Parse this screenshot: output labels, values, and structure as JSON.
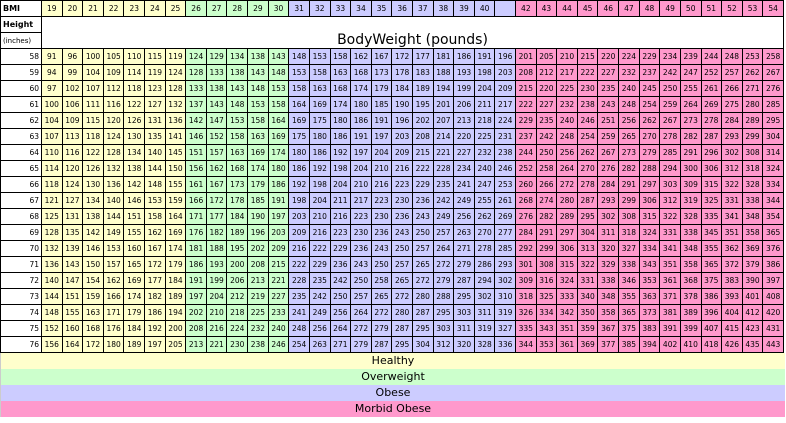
{
  "header": {
    "bmi_label": "BMI",
    "height_label": "Height",
    "inches_label": "(inches)",
    "title": "BodyWeight (pounds)"
  },
  "bmi": [
    19,
    20,
    21,
    22,
    23,
    24,
    25,
    26,
    27,
    28,
    29,
    30,
    31,
    32,
    33,
    34,
    35,
    36,
    37,
    38,
    39,
    40,
    null,
    42,
    43,
    44,
    45,
    46,
    47,
    48,
    49,
    50,
    51,
    52,
    53,
    54
  ],
  "column_colors": [
    "#ffffcc",
    "#ffffcc",
    "#ffffcc",
    "#ffffcc",
    "#ffffcc",
    "#ffffcc",
    "#ffffcc",
    "#ccffcc",
    "#ccffcc",
    "#ccffcc",
    "#ccffcc",
    "#ccffcc",
    "#ccccff",
    "#ccccff",
    "#ccccff",
    "#ccccff",
    "#ccccff",
    "#ccccff",
    "#ccccff",
    "#ccccff",
    "#ccccff",
    "#ccccff",
    "#ccccff",
    "#ff99cc",
    "#ff99cc",
    "#ff99cc",
    "#ff99cc",
    "#ff99cc",
    "#ff99cc",
    "#ff99cc",
    "#ff99cc",
    "#ff99cc",
    "#ff99cc",
    "#ff99cc",
    "#ff99cc",
    "#ff99cc"
  ],
  "rows": [
    {
      "height": 58,
      "weights": [
        91,
        96,
        100,
        105,
        110,
        115,
        119,
        124,
        129,
        134,
        138,
        143,
        148,
        153,
        158,
        162,
        167,
        172,
        177,
        181,
        186,
        191,
        196,
        201,
        205,
        210,
        215,
        220,
        224,
        229,
        234,
        239,
        244,
        248,
        253,
        258
      ]
    },
    {
      "height": 59,
      "weights": [
        94,
        99,
        104,
        109,
        114,
        119,
        124,
        128,
        133,
        138,
        143,
        148,
        153,
        158,
        163,
        168,
        173,
        178,
        183,
        188,
        193,
        198,
        203,
        208,
        212,
        217,
        222,
        227,
        232,
        237,
        242,
        247,
        252,
        257,
        262,
        267
      ]
    },
    {
      "height": 60,
      "weights": [
        97,
        102,
        107,
        112,
        118,
        123,
        128,
        133,
        138,
        143,
        148,
        153,
        158,
        163,
        168,
        174,
        179,
        184,
        189,
        194,
        199,
        204,
        209,
        215,
        220,
        225,
        230,
        235,
        240,
        245,
        250,
        255,
        261,
        266,
        271,
        276
      ]
    },
    {
      "height": 61,
      "weights": [
        100,
        106,
        111,
        116,
        122,
        127,
        132,
        137,
        143,
        148,
        153,
        158,
        164,
        169,
        174,
        180,
        185,
        190,
        195,
        201,
        206,
        211,
        217,
        222,
        227,
        232,
        238,
        243,
        248,
        254,
        259,
        264,
        269,
        275,
        280,
        285
      ]
    },
    {
      "height": 62,
      "weights": [
        104,
        109,
        115,
        120,
        126,
        131,
        136,
        142,
        147,
        153,
        158,
        164,
        169,
        175,
        180,
        186,
        191,
        196,
        202,
        207,
        213,
        218,
        224,
        229,
        235,
        240,
        246,
        251,
        256,
        262,
        267,
        273,
        278,
        284,
        289,
        295
      ]
    },
    {
      "height": 63,
      "weights": [
        107,
        113,
        118,
        124,
        130,
        135,
        141,
        146,
        152,
        158,
        163,
        169,
        175,
        180,
        186,
        191,
        197,
        203,
        208,
        214,
        220,
        225,
        231,
        237,
        242,
        248,
        254,
        259,
        265,
        270,
        278,
        282,
        287,
        293,
        299,
        304
      ]
    },
    {
      "height": 64,
      "weights": [
        110,
        116,
        122,
        128,
        134,
        140,
        145,
        151,
        157,
        163,
        169,
        174,
        180,
        186,
        192,
        197,
        204,
        209,
        215,
        221,
        227,
        232,
        238,
        244,
        250,
        256,
        262,
        267,
        273,
        279,
        285,
        291,
        296,
        302,
        308,
        314
      ]
    },
    {
      "height": 65,
      "weights": [
        114,
        120,
        126,
        132,
        138,
        144,
        150,
        156,
        162,
        168,
        174,
        180,
        186,
        192,
        198,
        204,
        210,
        216,
        222,
        228,
        234,
        240,
        246,
        252,
        258,
        264,
        270,
        276,
        282,
        288,
        294,
        300,
        306,
        312,
        318,
        324
      ]
    },
    {
      "height": 66,
      "weights": [
        118,
        124,
        130,
        136,
        142,
        148,
        155,
        161,
        167,
        173,
        179,
        186,
        192,
        198,
        204,
        210,
        216,
        223,
        229,
        235,
        241,
        247,
        253,
        260,
        266,
        272,
        278,
        284,
        291,
        297,
        303,
        309,
        315,
        322,
        328,
        334
      ]
    },
    {
      "height": 67,
      "weights": [
        121,
        127,
        134,
        140,
        146,
        153,
        159,
        166,
        172,
        178,
        185,
        191,
        198,
        204,
        211,
        217,
        223,
        230,
        236,
        242,
        249,
        255,
        261,
        268,
        274,
        280,
        287,
        293,
        299,
        306,
        312,
        319,
        325,
        331,
        338,
        344
      ]
    },
    {
      "height": 68,
      "weights": [
        125,
        131,
        138,
        144,
        151,
        158,
        164,
        171,
        177,
        184,
        190,
        197,
        203,
        210,
        216,
        223,
        230,
        236,
        243,
        249,
        256,
        262,
        269,
        276,
        282,
        289,
        295,
        302,
        308,
        315,
        322,
        328,
        335,
        341,
        348,
        354
      ]
    },
    {
      "height": 69,
      "weights": [
        128,
        135,
        142,
        149,
        155,
        162,
        169,
        176,
        182,
        189,
        196,
        203,
        209,
        216,
        223,
        230,
        236,
        243,
        250,
        257,
        263,
        270,
        277,
        284,
        291,
        297,
        304,
        311,
        318,
        324,
        331,
        338,
        345,
        351,
        358,
        365
      ]
    },
    {
      "height": 70,
      "weights": [
        132,
        139,
        146,
        153,
        160,
        167,
        174,
        181,
        188,
        195,
        202,
        209,
        216,
        222,
        229,
        236,
        243,
        250,
        257,
        264,
        271,
        278,
        285,
        292,
        299,
        306,
        313,
        320,
        327,
        334,
        341,
        348,
        355,
        362,
        369,
        376
      ]
    },
    {
      "height": 71,
      "weights": [
        136,
        143,
        150,
        157,
        165,
        172,
        179,
        186,
        193,
        200,
        208,
        215,
        222,
        229,
        236,
        243,
        250,
        257,
        265,
        272,
        279,
        286,
        293,
        301,
        308,
        315,
        322,
        329,
        338,
        343,
        351,
        358,
        365,
        372,
        379,
        386
      ]
    },
    {
      "height": 72,
      "weights": [
        140,
        147,
        154,
        162,
        169,
        177,
        184,
        191,
        199,
        206,
        213,
        221,
        228,
        235,
        242,
        250,
        258,
        265,
        272,
        279,
        287,
        294,
        302,
        309,
        316,
        324,
        331,
        338,
        346,
        353,
        361,
        368,
        375,
        383,
        390,
        397
      ]
    },
    {
      "height": 73,
      "weights": [
        144,
        151,
        159,
        166,
        174,
        182,
        189,
        197,
        204,
        212,
        219,
        227,
        235,
        242,
        250,
        257,
        265,
        272,
        280,
        288,
        295,
        302,
        310,
        318,
        325,
        333,
        340,
        348,
        355,
        363,
        371,
        378,
        386,
        393,
        401,
        408
      ]
    },
    {
      "height": 74,
      "weights": [
        148,
        155,
        163,
        171,
        179,
        186,
        194,
        202,
        210,
        218,
        225,
        233,
        241,
        249,
        256,
        264,
        272,
        280,
        287,
        295,
        303,
        311,
        319,
        326,
        334,
        342,
        350,
        358,
        365,
        373,
        381,
        389,
        396,
        404,
        412,
        420
      ]
    },
    {
      "height": 75,
      "weights": [
        152,
        160,
        168,
        176,
        184,
        192,
        200,
        208,
        216,
        224,
        232,
        240,
        248,
        256,
        264,
        272,
        279,
        287,
        295,
        303,
        311,
        319,
        327,
        335,
        343,
        351,
        359,
        367,
        375,
        383,
        391,
        399,
        407,
        415,
        423,
        431
      ]
    },
    {
      "height": 76,
      "weights": [
        156,
        164,
        172,
        180,
        189,
        197,
        205,
        213,
        221,
        230,
        238,
        246,
        254,
        263,
        271,
        279,
        287,
        295,
        304,
        312,
        320,
        328,
        336,
        344,
        353,
        361,
        369,
        377,
        385,
        394,
        402,
        410,
        418,
        426,
        435,
        443
      ]
    }
  ],
  "legend": [
    {
      "label": "Healthy",
      "color": "#ffffcc"
    },
    {
      "label": "Overweight",
      "color": "#ccffcc"
    },
    {
      "label": "Obese",
      "color": "#ccccff"
    },
    {
      "label": "Morbid Obese",
      "color": "#ff99cc"
    }
  ]
}
